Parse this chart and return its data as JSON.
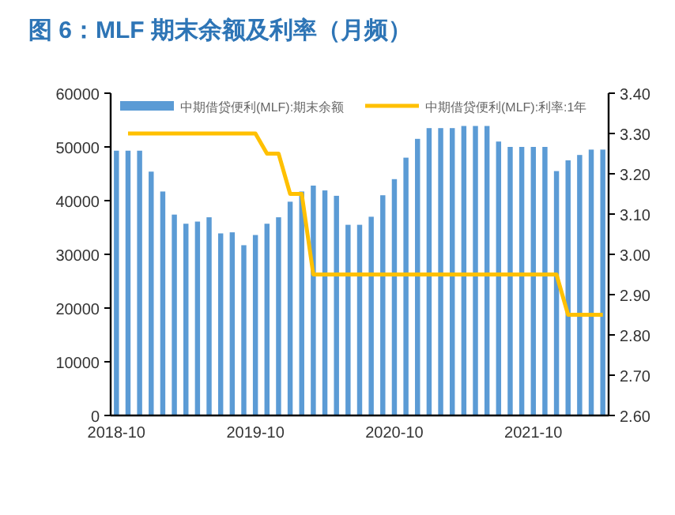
{
  "chart_data": {
    "type": "bar",
    "title": "图 6：MLF 期末余额及利率（月频）",
    "categories": [
      "2018-10",
      null,
      null,
      null,
      null,
      null,
      null,
      null,
      null,
      null,
      null,
      null,
      "2019-10",
      null,
      null,
      null,
      null,
      null,
      null,
      null,
      null,
      null,
      null,
      null,
      "2020-10",
      null,
      null,
      null,
      null,
      null,
      null,
      null,
      null,
      null,
      null,
      null,
      "2021-10",
      null,
      null,
      null,
      null,
      null,
      null
    ],
    "series": [
      {
        "name": "中期借贷便利(MLF):期末余额",
        "color": "#5b9bd5",
        "values": [
          49300,
          49300,
          49300,
          45400,
          41700,
          37400,
          35700,
          36100,
          36900,
          33900,
          34100,
          31700,
          33600,
          35700,
          36900,
          39800,
          41700,
          42800,
          41900,
          40900,
          35500,
          35500,
          37000,
          41000,
          44000,
          48000,
          51500,
          53500,
          53500,
          53500,
          53900,
          53900,
          53900,
          51000,
          50000,
          50000,
          50000,
          50000,
          45500,
          47500,
          48500,
          49500,
          49500
        ]
      },
      {
        "name": "中期借贷便利(MLF):利率:1年",
        "type": "line",
        "axis": "y2",
        "color": "#ffc000",
        "values": [
          null,
          3.3,
          3.3,
          3.3,
          3.3,
          3.3,
          3.3,
          3.3,
          3.3,
          3.3,
          3.3,
          3.3,
          3.3,
          3.25,
          3.25,
          3.15,
          3.15,
          2.95,
          2.95,
          2.95,
          2.95,
          2.95,
          2.95,
          2.95,
          2.95,
          2.95,
          2.95,
          2.95,
          2.95,
          2.95,
          2.95,
          2.95,
          2.95,
          2.95,
          2.95,
          2.95,
          2.95,
          2.95,
          2.95,
          2.85,
          2.85,
          2.85,
          2.85
        ]
      }
    ],
    "ylim": [
      0,
      60000
    ],
    "yticks": [
      0,
      10000,
      20000,
      30000,
      40000,
      50000,
      60000
    ],
    "y2lim": [
      2.6,
      3.4
    ],
    "y2ticks": [
      {
        "value": 2.6,
        "label": "2.60"
      },
      {
        "value": 2.7,
        "label": "2.70"
      },
      {
        "value": 2.8,
        "label": "2.80"
      },
      {
        "value": 2.9,
        "label": "2.90"
      },
      {
        "value": 3.0,
        "label": "3.00"
      },
      {
        "value": 3.1,
        "label": "3.10"
      },
      {
        "value": 3.2,
        "label": "3.20"
      },
      {
        "value": 3.3,
        "label": "3.30"
      },
      {
        "value": 3.4,
        "label": "3.40"
      }
    ],
    "legend": "top",
    "grid": false
  }
}
